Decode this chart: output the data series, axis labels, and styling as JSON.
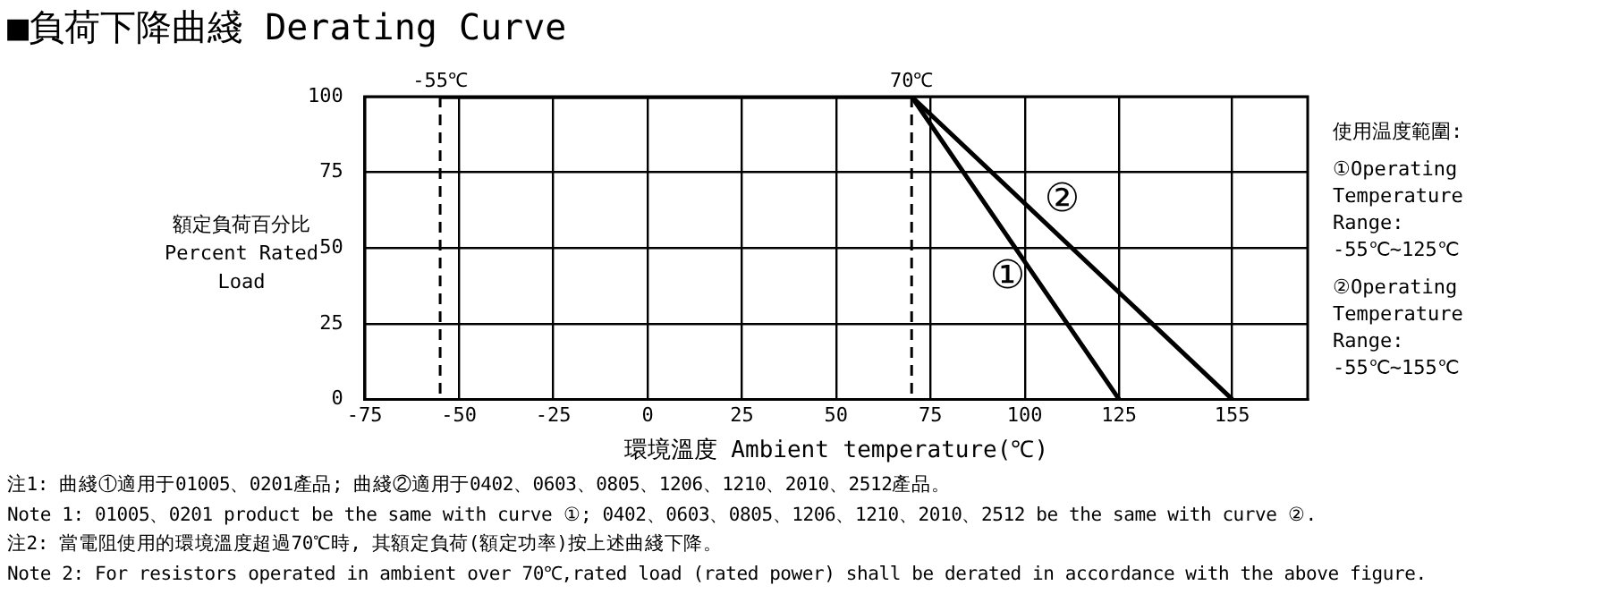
{
  "chart_data": {
    "type": "line",
    "title": "■負荷下降曲綫 Derating Curve",
    "xlabel": "環境溫度 Ambient temperature(℃)",
    "ylabel": "額定負荷百分比 Percent Rated Load",
    "series": [
      {
        "name": "①",
        "color": "#000000",
        "x": [
          -55,
          70,
          125
        ],
        "values": [
          100,
          100,
          0
        ]
      },
      {
        "name": "②",
        "color": "#000000",
        "x": [
          -55,
          70,
          155
        ],
        "values": [
          100,
          100,
          0
        ]
      }
    ],
    "xlim": [
      -75,
      175
    ],
    "xticks": [
      -75,
      -50,
      -25,
      0,
      25,
      50,
      75,
      100,
      125,
      155
    ],
    "ylim": [
      0,
      100
    ],
    "yticks": [
      0,
      25,
      50,
      75,
      100
    ],
    "grid": true,
    "legend": false,
    "marker": "none",
    "line_style": "solid",
    "ref_lines": [
      {
        "axis": "x",
        "value": -55,
        "label": "-55℃",
        "line_style": "dashed"
      },
      {
        "axis": "x",
        "value": 70,
        "label": "70℃",
        "line_style": "dashed"
      }
    ],
    "annotations": [
      "使用温度範圍:",
      "①Operating Temperature Range: -55℃~125℃",
      "②Operating Temperature Range: -55℃~155℃",
      "注1: 曲綫①適用于01005、0201產品; 曲綫②適用于0402、0603、0805、1206、1210、2010、2512產品。",
      "Note 1: 01005、0201 product be the same with curve ①; 0402、0603、0805、1206、1210、2010、2512 be the same with curve ②.",
      "注2: 當電阻使用的環境溫度超過70℃時, 其額定負荷(額定功率)按上述曲綫下降。",
      "Note 2: For resistors operated in ambient over 70℃,rated load (rated power) shall be derated in accordance with the above figure."
    ]
  }
}
